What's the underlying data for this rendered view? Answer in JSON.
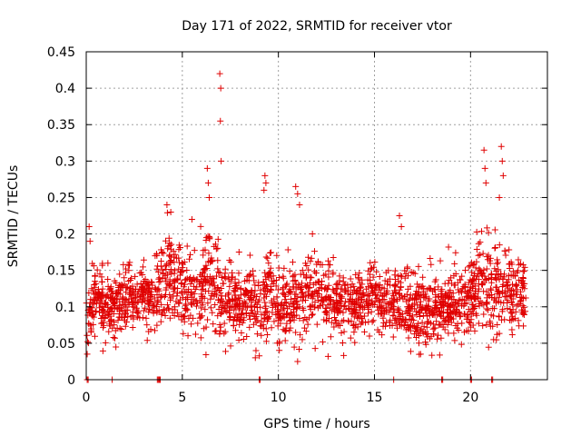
{
  "chart_data": {
    "type": "scatter",
    "title": "Day 171 of 2022, SRMTID for receiver vtor",
    "xlabel": "GPS time / hours",
    "ylabel": "SRMTID / TECUs",
    "xlim": [
      0,
      24
    ],
    "ylim": [
      0,
      0.45
    ],
    "grid": true,
    "marker": "+",
    "marker_color": "#e00000",
    "x_ticks": [
      0,
      5,
      10,
      15,
      20
    ],
    "x_tick_labels": [
      "0",
      "5",
      "10",
      "15",
      "20"
    ],
    "y_ticks": [
      0,
      0.05,
      0.1,
      0.15,
      0.2,
      0.25,
      0.3,
      0.35,
      0.4,
      0.45
    ],
    "y_tick_labels": [
      "0",
      "0.05",
      "0.1",
      "0.15",
      "0.2",
      "0.25",
      "0.3",
      "0.35",
      "0.4",
      "0.45"
    ],
    "envelope_hours": [
      0,
      0.5,
      1,
      1.5,
      2,
      2.5,
      3,
      3.5,
      4,
      4.5,
      5,
      5.5,
      6,
      6.5,
      7,
      7.5,
      8,
      8.5,
      9,
      9.5,
      10,
      10.5,
      11,
      11.5,
      12,
      12.5,
      13,
      13.5,
      14,
      14.5,
      15,
      15.5,
      16,
      16.5,
      17,
      17.5,
      18,
      18.5,
      19,
      19.5,
      20,
      20.5,
      21,
      21.5,
      22,
      22.5,
      23
    ],
    "envelope_center": [
      0.08,
      0.11,
      0.1,
      0.1,
      0.12,
      0.11,
      0.12,
      0.11,
      0.13,
      0.15,
      0.12,
      0.12,
      0.13,
      0.14,
      0.1,
      0.11,
      0.1,
      0.11,
      0.09,
      0.12,
      0.1,
      0.1,
      0.11,
      0.12,
      0.13,
      0.11,
      0.1,
      0.11,
      0.1,
      0.11,
      0.11,
      0.1,
      0.11,
      0.1,
      0.1,
      0.1,
      0.1,
      0.1,
      0.1,
      0.11,
      0.11,
      0.14,
      0.12,
      0.13,
      0.12,
      0.12,
      0.12
    ],
    "envelope_spread": [
      0.05,
      0.04,
      0.04,
      0.04,
      0.04,
      0.04,
      0.04,
      0.04,
      0.05,
      0.06,
      0.05,
      0.05,
      0.06,
      0.07,
      0.05,
      0.05,
      0.05,
      0.05,
      0.05,
      0.06,
      0.05,
      0.04,
      0.05,
      0.06,
      0.05,
      0.05,
      0.04,
      0.04,
      0.04,
      0.04,
      0.04,
      0.04,
      0.04,
      0.04,
      0.05,
      0.04,
      0.04,
      0.04,
      0.04,
      0.04,
      0.05,
      0.06,
      0.06,
      0.06,
      0.05,
      0.04,
      0.03
    ],
    "point_count": 2200,
    "spikes": [
      {
        "x": 0.15,
        "y": 0.21
      },
      {
        "x": 0.2,
        "y": 0.19
      },
      {
        "x": 4.2,
        "y": 0.24
      },
      {
        "x": 4.4,
        "y": 0.23
      },
      {
        "x": 5.5,
        "y": 0.22
      },
      {
        "x": 6.3,
        "y": 0.29
      },
      {
        "x": 6.35,
        "y": 0.27
      },
      {
        "x": 6.4,
        "y": 0.25
      },
      {
        "x": 6.95,
        "y": 0.42
      },
      {
        "x": 7.0,
        "y": 0.4
      },
      {
        "x": 6.98,
        "y": 0.355
      },
      {
        "x": 7.02,
        "y": 0.3
      },
      {
        "x": 9.3,
        "y": 0.28
      },
      {
        "x": 9.35,
        "y": 0.27
      },
      {
        "x": 9.25,
        "y": 0.26
      },
      {
        "x": 10.9,
        "y": 0.265
      },
      {
        "x": 11.0,
        "y": 0.255
      },
      {
        "x": 11.1,
        "y": 0.24
      },
      {
        "x": 16.3,
        "y": 0.225
      },
      {
        "x": 16.4,
        "y": 0.21
      },
      {
        "x": 20.7,
        "y": 0.315
      },
      {
        "x": 20.75,
        "y": 0.29
      },
      {
        "x": 20.8,
        "y": 0.27
      },
      {
        "x": 21.6,
        "y": 0.32
      },
      {
        "x": 21.65,
        "y": 0.3
      },
      {
        "x": 21.7,
        "y": 0.28
      },
      {
        "x": 21.5,
        "y": 0.25
      },
      {
        "x": 11.0,
        "y": 0.025
      },
      {
        "x": 17.4,
        "y": 0.035
      },
      {
        "x": 21.2,
        "y": 0.055
      },
      {
        "x": 8.8,
        "y": 0.03
      },
      {
        "x": 0.05,
        "y": 0.035
      }
    ],
    "zero_points": [
      0.05,
      0.1,
      1.35,
      3.7,
      3.75,
      3.8,
      3.85,
      9.0,
      9.05,
      16.0,
      18.5,
      18.55,
      20.0,
      20.05,
      21.1,
      21.15
    ]
  }
}
